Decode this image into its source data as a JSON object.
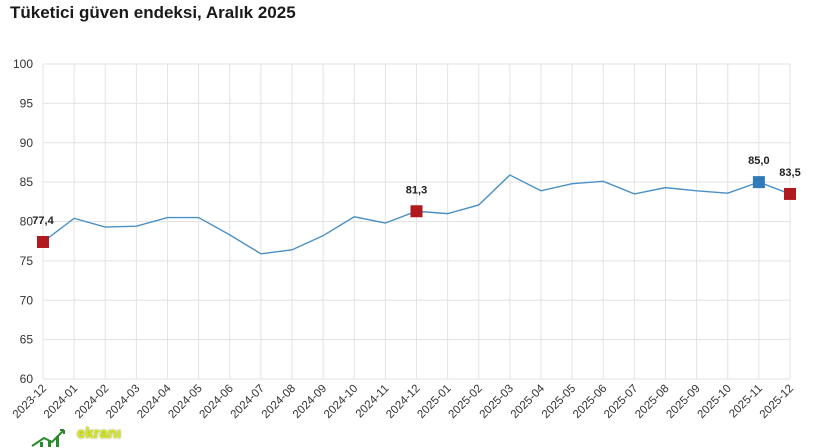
{
  "chart_data": {
    "type": "line",
    "title": "Tüketici güven endeksi, Aralık 2025",
    "categories": [
      "2023-12",
      "2024-01",
      "2024-02",
      "2024-03",
      "2024-04",
      "2024-05",
      "2024-06",
      "2024-07",
      "2024-08",
      "2024-09",
      "2024-10",
      "2024-11",
      "2024-12",
      "2025-01",
      "2025-02",
      "2025-03",
      "2025-04",
      "2025-05",
      "2025-06",
      "2025-07",
      "2025-08",
      "2025-09",
      "2025-10",
      "2025-11",
      "2025-12"
    ],
    "series": [
      {
        "values": [
          77.4,
          80.4,
          79.3,
          79.4,
          80.5,
          80.5,
          78.3,
          75.9,
          76.4,
          78.2,
          80.6,
          79.8,
          81.3,
          81.0,
          82.1,
          85.9,
          83.9,
          84.8,
          85.1,
          83.5,
          84.3,
          83.9,
          83.6,
          85.0,
          83.5
        ],
        "color": "#4a90c4"
      }
    ],
    "highlighted_points": [
      {
        "category": "2023-12",
        "label": "77,4",
        "color": "#b0191e"
      },
      {
        "category": "2024-12",
        "label": "81,3",
        "color": "#b0191e"
      },
      {
        "category": "2025-11",
        "label": "85,0",
        "color": "#2f7ab8"
      },
      {
        "category": "2025-12",
        "label": "83,5",
        "color": "#b0191e"
      }
    ],
    "yticks": [
      "60",
      "65",
      "70",
      "75",
      "80",
      "85",
      "90",
      "95",
      "100"
    ],
    "ylim": [
      60,
      100
    ],
    "grid": true,
    "xlabel": "",
    "ylabel": ""
  },
  "watermark": {
    "text": "ekranı"
  }
}
